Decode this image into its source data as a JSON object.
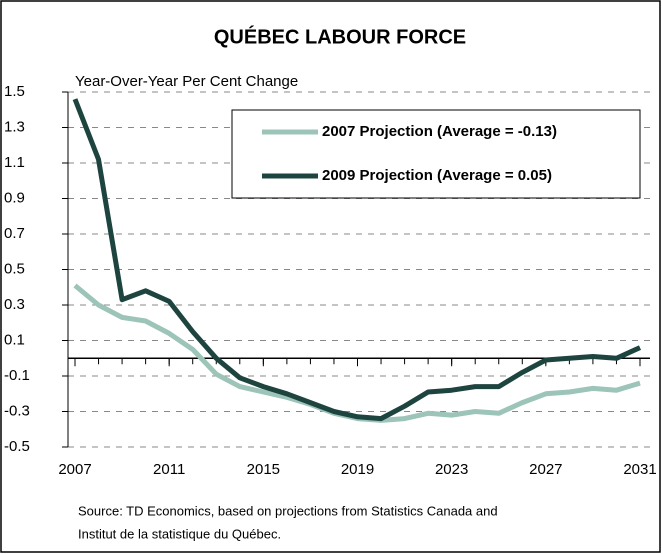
{
  "chart_data": {
    "type": "line",
    "title": "QUÉBEC LABOUR FORCE",
    "y_label": "Year-Over-Year Per Cent Change",
    "source": [
      "Source: TD Economics, based on projections from Statistics Canada and",
      "Institut de la statistique du Québec."
    ],
    "x": [
      2007,
      2008,
      2009,
      2010,
      2011,
      2012,
      2013,
      2014,
      2015,
      2016,
      2017,
      2018,
      2019,
      2020,
      2021,
      2022,
      2023,
      2024,
      2025,
      2026,
      2027,
      2028,
      2029,
      2030,
      2031
    ],
    "series": [
      {
        "name": "2007 Projection (Average = -0.13)",
        "color": "#9cc4b8",
        "values": [
          0.41,
          0.3,
          0.23,
          0.21,
          0.14,
          0.05,
          -0.09,
          -0.16,
          -0.19,
          -0.22,
          -0.26,
          -0.31,
          -0.34,
          -0.35,
          -0.34,
          -0.31,
          -0.32,
          -0.3,
          -0.31,
          -0.25,
          -0.2,
          -0.19,
          -0.17,
          -0.18,
          -0.14
        ]
      },
      {
        "name": "2009 Projection (Average = 0.05)",
        "color": "#1e4440",
        "values": [
          1.46,
          1.12,
          0.33,
          0.38,
          0.32,
          0.15,
          0.0,
          -0.11,
          -0.16,
          -0.2,
          -0.25,
          -0.3,
          -0.33,
          -0.34,
          -0.27,
          -0.19,
          -0.18,
          -0.16,
          -0.16,
          -0.08,
          -0.01,
          0.0,
          0.01,
          0.0,
          0.06
        ]
      }
    ],
    "xlim": [
      2007,
      2031
    ],
    "xticks": [
      2007,
      2011,
      2015,
      2019,
      2023,
      2027,
      2031
    ],
    "ylim": [
      -0.5,
      1.5
    ],
    "yticks": [
      -0.5,
      -0.3,
      -0.1,
      0.1,
      0.3,
      0.5,
      0.7,
      0.9,
      1.1,
      1.3,
      1.5
    ],
    "grid": true
  }
}
